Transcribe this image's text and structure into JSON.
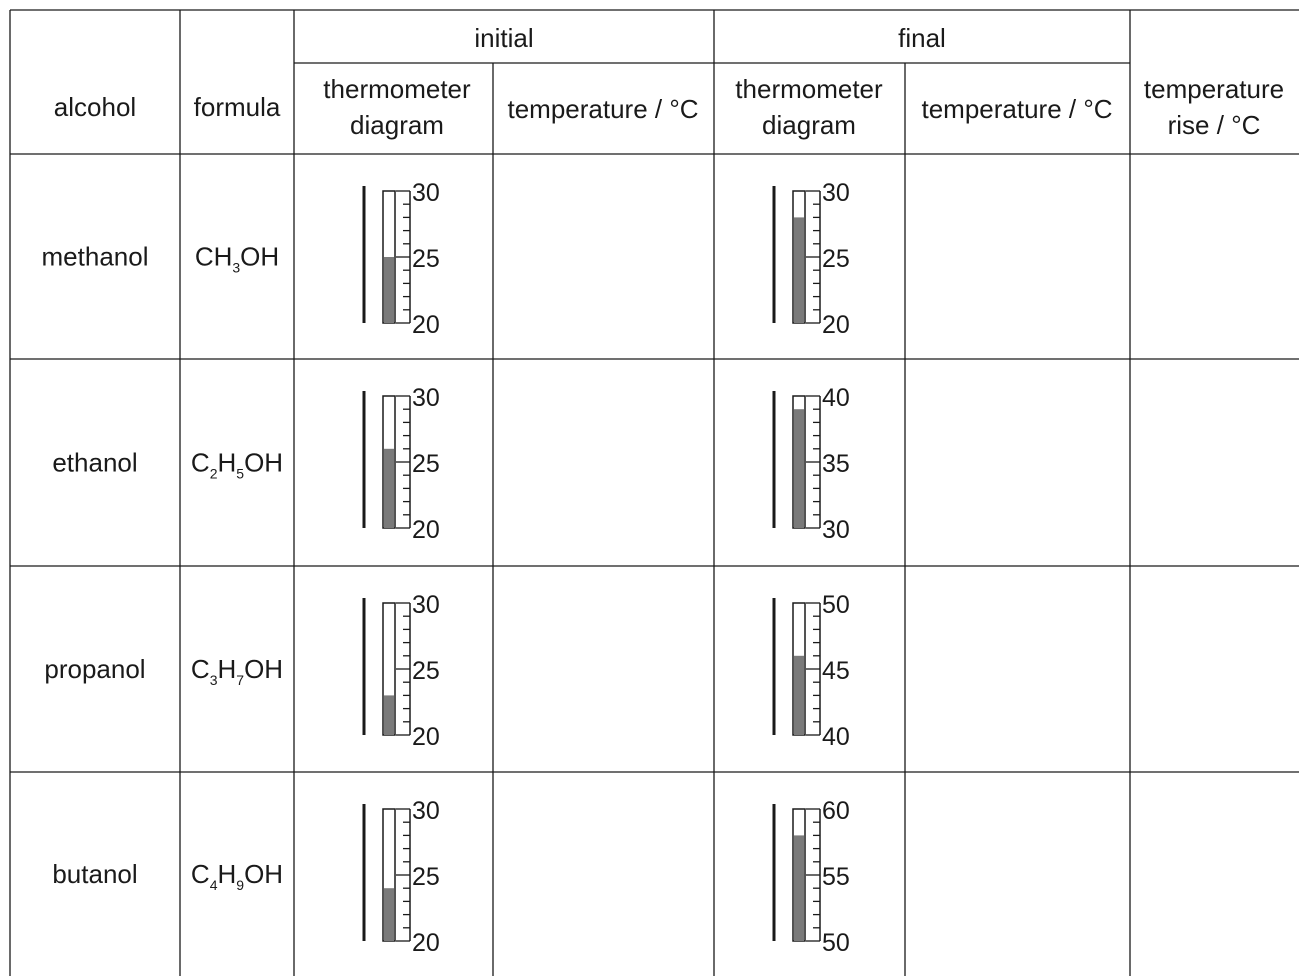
{
  "headers": {
    "alcohol": "alcohol",
    "formula": "formula",
    "initial": "initial",
    "final": "final",
    "thermometer_1": "thermometer",
    "thermometer_2": "diagram",
    "temperature": "temperature / °C",
    "rise_1": "temperature",
    "rise_2": "rise / °C"
  },
  "rows": [
    {
      "alcohol": "methanol",
      "formula": [
        {
          "t": "CH"
        },
        {
          "s": "3"
        },
        {
          "t": "OH"
        }
      ],
      "initial": {
        "scale": [
          "30",
          "25",
          "20"
        ],
        "min": 20,
        "max": 30,
        "reading": 25
      },
      "final": {
        "scale": [
          "30",
          "25",
          "20"
        ],
        "min": 20,
        "max": 30,
        "reading": 28
      }
    },
    {
      "alcohol": "ethanol",
      "formula": [
        {
          "t": "C"
        },
        {
          "s": "2"
        },
        {
          "t": "H"
        },
        {
          "s": "5"
        },
        {
          "t": "OH"
        }
      ],
      "initial": {
        "scale": [
          "30",
          "25",
          "20"
        ],
        "min": 20,
        "max": 30,
        "reading": 26
      },
      "final": {
        "scale": [
          "40",
          "35",
          "30"
        ],
        "min": 30,
        "max": 40,
        "reading": 39
      }
    },
    {
      "alcohol": "propanol",
      "formula": [
        {
          "t": "C"
        },
        {
          "s": "3"
        },
        {
          "t": "H"
        },
        {
          "s": "7"
        },
        {
          "t": "OH"
        }
      ],
      "initial": {
        "scale": [
          "30",
          "25",
          "20"
        ],
        "min": 20,
        "max": 30,
        "reading": 23
      },
      "final": {
        "scale": [
          "50",
          "45",
          "40"
        ],
        "min": 40,
        "max": 50,
        "reading": 46
      }
    },
    {
      "alcohol": "butanol",
      "formula": [
        {
          "t": "C"
        },
        {
          "s": "4"
        },
        {
          "t": "H"
        },
        {
          "s": "9"
        },
        {
          "t": "OH"
        }
      ],
      "initial": {
        "scale": [
          "30",
          "25",
          "20"
        ],
        "min": 20,
        "max": 30,
        "reading": 24
      },
      "final": {
        "scale": [
          "60",
          "55",
          "50"
        ],
        "min": 50,
        "max": 60,
        "reading": 58
      }
    }
  ],
  "colors": {
    "line": "#1a1a1a",
    "mercury": "#7a7a7a"
  }
}
